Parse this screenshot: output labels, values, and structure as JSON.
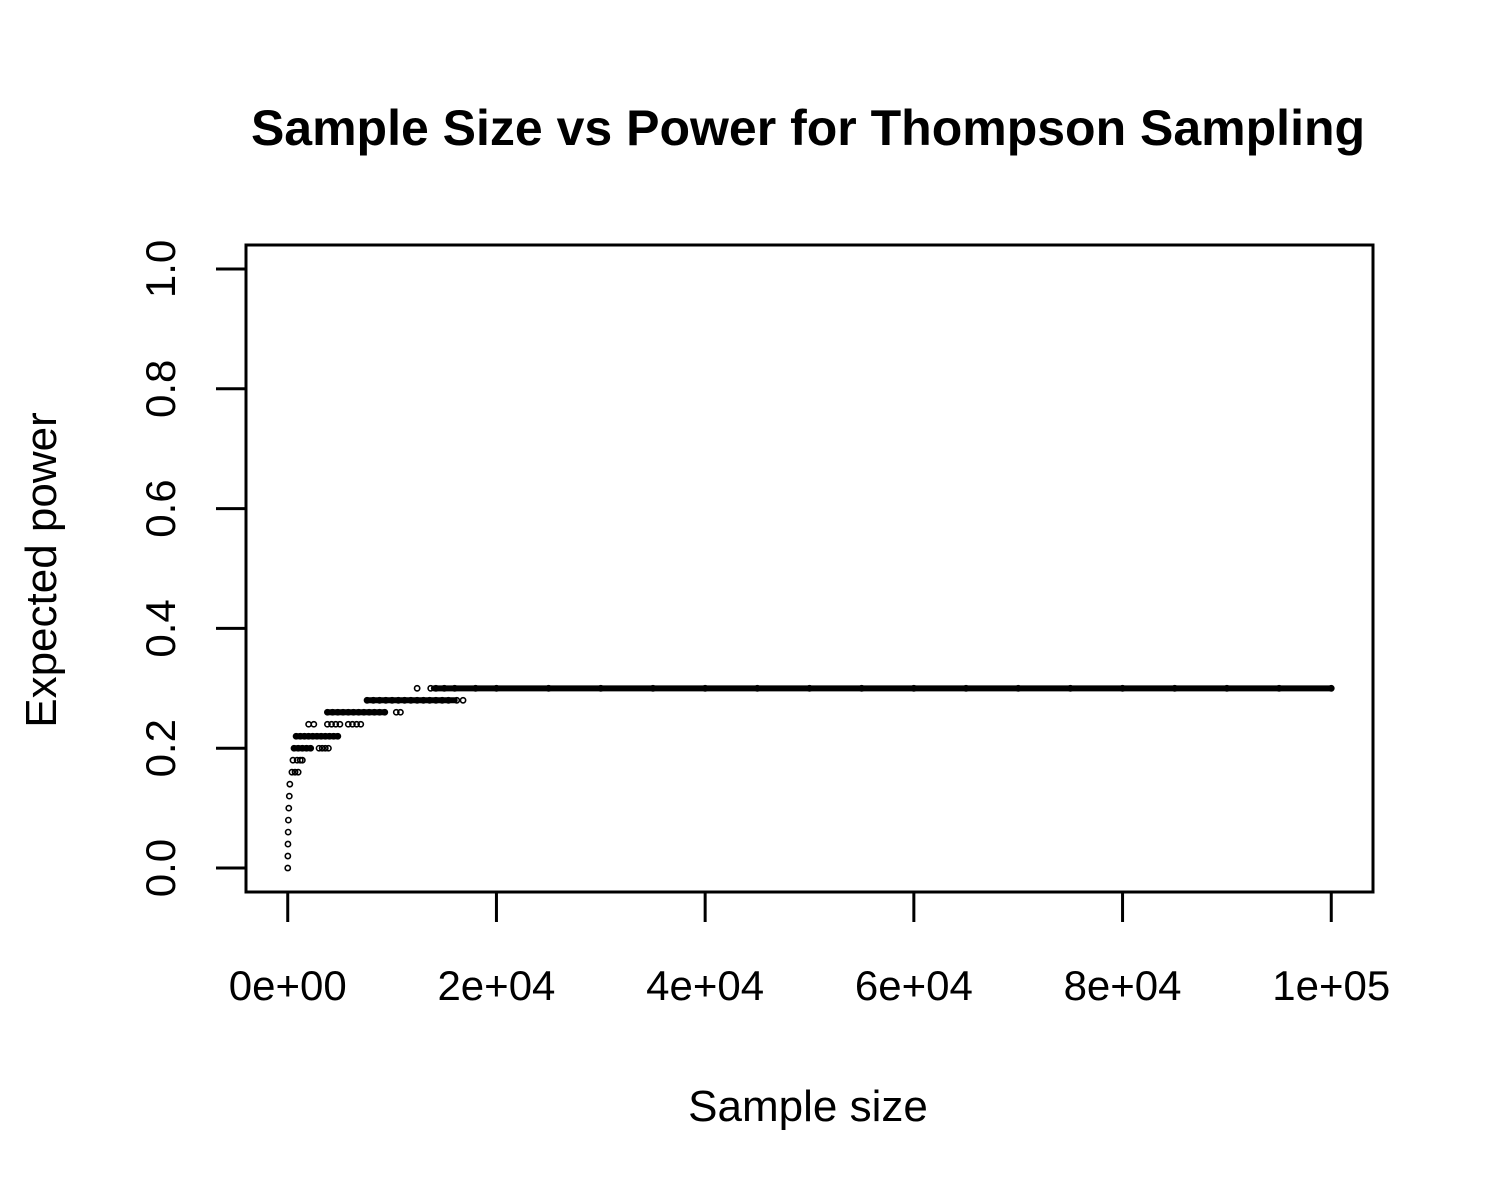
{
  "chart_data": {
    "type": "scatter",
    "title": "Sample Size vs Power for Thompson Sampling",
    "xlabel": "Sample size",
    "ylabel": "Expected power",
    "xlim": [
      -4000,
      104000
    ],
    "ylim": [
      -0.04,
      1.04
    ],
    "x_ticks": [
      {
        "value": 0,
        "label": "0e+00"
      },
      {
        "value": 20000,
        "label": "2e+04"
      },
      {
        "value": 40000,
        "label": "4e+04"
      },
      {
        "value": 60000,
        "label": "6e+04"
      },
      {
        "value": 80000,
        "label": "8e+04"
      },
      {
        "value": 100000,
        "label": "1e+05"
      }
    ],
    "y_ticks": [
      {
        "value": 0.0,
        "label": "0.0"
      },
      {
        "value": 0.2,
        "label": "0.2"
      },
      {
        "value": 0.4,
        "label": "0.4"
      },
      {
        "value": 0.6,
        "label": "0.6"
      },
      {
        "value": 0.8,
        "label": "0.8"
      },
      {
        "value": 1.0,
        "label": "1.0"
      }
    ],
    "grid": false,
    "marker": "open-circle",
    "series": [
      {
        "name": "Expected power",
        "points": [
          [
            0,
            0.0
          ],
          [
            10,
            0.02
          ],
          [
            20,
            0.04
          ],
          [
            40,
            0.06
          ],
          [
            60,
            0.08
          ],
          [
            100,
            0.1
          ],
          [
            150,
            0.12
          ],
          [
            200,
            0.14
          ],
          [
            400,
            0.16
          ],
          [
            700,
            0.16
          ],
          [
            1000,
            0.16
          ],
          [
            500,
            0.18
          ],
          [
            900,
            0.18
          ],
          [
            1200,
            0.18
          ],
          [
            1400,
            0.18
          ],
          [
            600,
            0.2
          ],
          [
            1000,
            0.2
          ],
          [
            1400,
            0.2
          ],
          [
            1800,
            0.2
          ],
          [
            2200,
            0.2
          ],
          [
            3000,
            0.2
          ],
          [
            3300,
            0.2
          ],
          [
            3600,
            0.2
          ],
          [
            3900,
            0.2
          ],
          [
            800,
            0.22
          ],
          [
            1200,
            0.22
          ],
          [
            1600,
            0.22
          ],
          [
            2000,
            0.22
          ],
          [
            2400,
            0.22
          ],
          [
            2800,
            0.22
          ],
          [
            3200,
            0.22
          ],
          [
            3600,
            0.22
          ],
          [
            4000,
            0.22
          ],
          [
            4400,
            0.22
          ],
          [
            4800,
            0.22
          ],
          [
            2000,
            0.24
          ],
          [
            2500,
            0.24
          ],
          [
            3800,
            0.24
          ],
          [
            4200,
            0.24
          ],
          [
            4600,
            0.24
          ],
          [
            5000,
            0.24
          ],
          [
            5800,
            0.24
          ],
          [
            6200,
            0.24
          ],
          [
            6600,
            0.24
          ],
          [
            7000,
            0.24
          ],
          [
            3800,
            0.26
          ],
          [
            4300,
            0.26
          ],
          [
            4800,
            0.26
          ],
          [
            5300,
            0.26
          ],
          [
            5800,
            0.26
          ],
          [
            6300,
            0.26
          ],
          [
            6800,
            0.26
          ],
          [
            7300,
            0.26
          ],
          [
            7800,
            0.26
          ],
          [
            8300,
            0.26
          ],
          [
            8800,
            0.26
          ],
          [
            9300,
            0.26
          ],
          [
            10400,
            0.26
          ],
          [
            10800,
            0.26
          ],
          [
            7600,
            0.28
          ],
          [
            8200,
            0.28
          ],
          [
            8800,
            0.28
          ],
          [
            9400,
            0.28
          ],
          [
            10000,
            0.28
          ],
          [
            10600,
            0.28
          ],
          [
            11200,
            0.28
          ],
          [
            11800,
            0.28
          ],
          [
            12400,
            0.28
          ],
          [
            13000,
            0.28
          ],
          [
            13600,
            0.28
          ],
          [
            14200,
            0.28
          ],
          [
            14800,
            0.28
          ],
          [
            15400,
            0.28
          ],
          [
            16200,
            0.28
          ],
          [
            16800,
            0.28
          ],
          [
            12400,
            0.3
          ],
          [
            13700,
            0.3
          ],
          [
            14200,
            0.3
          ],
          [
            15000,
            0.3
          ],
          [
            16000,
            0.3
          ],
          [
            18000,
            0.3
          ],
          [
            20000,
            0.3
          ],
          [
            25000,
            0.3
          ],
          [
            30000,
            0.3
          ],
          [
            35000,
            0.3
          ],
          [
            40000,
            0.3
          ],
          [
            45000,
            0.3
          ],
          [
            50000,
            0.3
          ],
          [
            55000,
            0.3
          ],
          [
            60000,
            0.3
          ],
          [
            65000,
            0.3
          ],
          [
            70000,
            0.3
          ],
          [
            75000,
            0.3
          ],
          [
            80000,
            0.3
          ],
          [
            85000,
            0.3
          ],
          [
            90000,
            0.3
          ],
          [
            95000,
            0.3
          ],
          [
            100000,
            0.3
          ]
        ],
        "dense_segments": [
          {
            "x_from": 14000,
            "x_to": 100000,
            "y": 0.3
          },
          {
            "x_from": 7600,
            "x_to": 16000,
            "y": 0.28
          },
          {
            "x_from": 3800,
            "x_to": 9300,
            "y": 0.26
          },
          {
            "x_from": 800,
            "x_to": 4800,
            "y": 0.22
          },
          {
            "x_from": 600,
            "x_to": 2200,
            "y": 0.2
          }
        ]
      }
    ]
  }
}
